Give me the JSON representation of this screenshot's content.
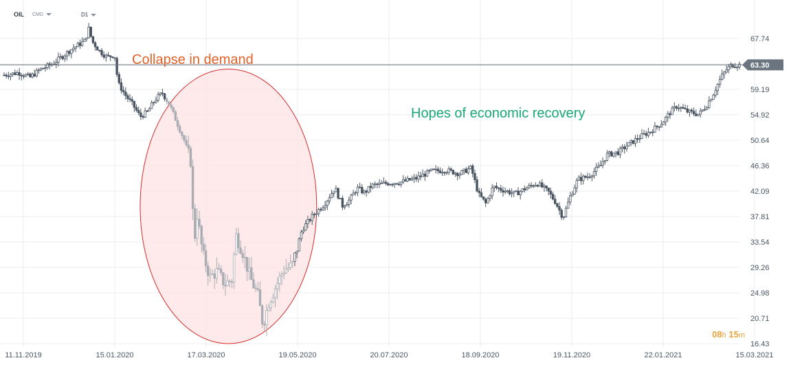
{
  "header": {
    "symbol": "OIL",
    "category": "CMD",
    "timeframe": "D1"
  },
  "timer": {
    "hours": "08",
    "hours_unit": "h",
    "minutes": "15",
    "minutes_unit": "m"
  },
  "colors": {
    "grid": "#e9ecef",
    "candle": "#4a5561",
    "candle_highlight": "#a9adb3",
    "price_line": "#6b7580",
    "price_tag_bg": "#6b7580",
    "ellipse_fill": "#fde3e3",
    "ellipse_stroke": "#d62a2a",
    "annotation_demand": "#e0622a",
    "annotation_recovery": "#19a778",
    "axis_text": "#4a5561"
  },
  "chart_data": {
    "type": "candlestick",
    "x_labels": [
      "11.11.2019",
      "15.01.2020",
      "17.03.2020",
      "19.05.2020",
      "20.07.2020",
      "18.09.2020",
      "19.11.2020",
      "22.01.2021",
      "15.03.2021"
    ],
    "y_ticks": [
      67.74,
      63.47,
      59.19,
      54.92,
      50.64,
      46.36,
      42.09,
      37.81,
      33.54,
      29.26,
      24.98,
      20.71,
      16.43
    ],
    "y_tick_labels": [
      "67.74",
      "",
      "59.19",
      "54.92",
      "50.64",
      "46.36",
      "42.09",
      "37.81",
      "33.54",
      "29.26",
      "24.98",
      "20.71",
      "16.43"
    ],
    "ylim": [
      16.43,
      67.74
    ],
    "grid": true,
    "current_price": 63.3,
    "current_price_label": "63.30",
    "annotations": [
      {
        "text": "Collapse in demand"
      },
      {
        "text": "Hopes of economic recovery"
      }
    ],
    "price_path": [
      [
        0,
        61.6
      ],
      [
        0.02,
        62.0
      ],
      [
        0.035,
        61.2
      ],
      [
        0.05,
        62.6
      ],
      [
        0.065,
        63.4
      ],
      [
        0.08,
        64.8
      ],
      [
        0.09,
        65.8
      ],
      [
        0.1,
        66.6
      ],
      [
        0.11,
        67.4
      ],
      [
        0.115,
        69.4
      ],
      [
        0.12,
        67.2
      ],
      [
        0.13,
        65.6
      ],
      [
        0.14,
        64.6
      ],
      [
        0.15,
        65.0
      ],
      [
        0.155,
        60.2
      ],
      [
        0.165,
        58.2
      ],
      [
        0.175,
        56.6
      ],
      [
        0.185,
        54.6
      ],
      [
        0.195,
        55.4
      ],
      [
        0.205,
        57.4
      ],
      [
        0.215,
        58.6
      ],
      [
        0.225,
        56.6
      ],
      [
        0.235,
        53.6
      ],
      [
        0.245,
        50.6
      ],
      [
        0.255,
        46.6
      ],
      [
        0.258,
        32.0
      ],
      [
        0.262,
        38.6
      ],
      [
        0.27,
        31.6
      ],
      [
        0.28,
        27.6
      ],
      [
        0.29,
        28.6
      ],
      [
        0.3,
        26.4
      ],
      [
        0.31,
        27.2
      ],
      [
        0.315,
        34.8
      ],
      [
        0.325,
        31.6
      ],
      [
        0.335,
        27.4
      ],
      [
        0.345,
        24.6
      ],
      [
        0.352,
        19.6
      ],
      [
        0.36,
        23.4
      ],
      [
        0.37,
        26.2
      ],
      [
        0.38,
        28.8
      ],
      [
        0.392,
        29.6
      ],
      [
        0.405,
        35.6
      ],
      [
        0.42,
        38.0
      ],
      [
        0.435,
        39.8
      ],
      [
        0.45,
        42.6
      ],
      [
        0.46,
        39.6
      ],
      [
        0.47,
        40.6
      ],
      [
        0.48,
        42.6
      ],
      [
        0.49,
        41.8
      ],
      [
        0.5,
        43.0
      ],
      [
        0.52,
        43.4
      ],
      [
        0.54,
        43.6
      ],
      [
        0.56,
        44.2
      ],
      [
        0.58,
        45.4
      ],
      [
        0.6,
        45.6
      ],
      [
        0.62,
        45.0
      ],
      [
        0.635,
        46.0
      ],
      [
        0.645,
        41.6
      ],
      [
        0.655,
        40.0
      ],
      [
        0.665,
        42.8
      ],
      [
        0.68,
        42.2
      ],
      [
        0.695,
        41.6
      ],
      [
        0.71,
        42.6
      ],
      [
        0.725,
        43.4
      ],
      [
        0.74,
        42.0
      ],
      [
        0.75,
        40.2
      ],
      [
        0.76,
        37.6
      ],
      [
        0.77,
        41.2
      ],
      [
        0.78,
        44.0
      ],
      [
        0.795,
        44.6
      ],
      [
        0.81,
        46.2
      ],
      [
        0.82,
        48.2
      ],
      [
        0.835,
        48.6
      ],
      [
        0.85,
        50.0
      ],
      [
        0.865,
        51.2
      ],
      [
        0.88,
        52.2
      ],
      [
        0.895,
        53.6
      ],
      [
        0.905,
        55.2
      ],
      [
        0.915,
        56.4
      ],
      [
        0.93,
        55.4
      ],
      [
        0.945,
        55.0
      ],
      [
        0.955,
        56.4
      ],
      [
        0.965,
        58.6
      ],
      [
        0.975,
        61.2
      ],
      [
        0.983,
        62.6
      ],
      [
        0.99,
        63.3
      ]
    ]
  }
}
